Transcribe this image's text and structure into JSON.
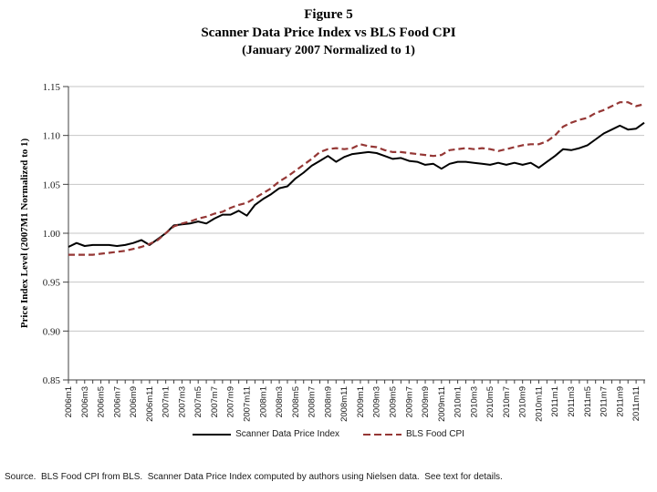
{
  "title": {
    "line1": "Figure 5",
    "line2": "Scanner Data Price Index vs BLS Food CPI",
    "line3": "(January 2007 Normalized to 1)"
  },
  "chart_data": {
    "type": "line",
    "title": "Figure 5 — Scanner Data Price Index vs BLS Food CPI (January 2007 Normalized to 1)",
    "xlabel": "",
    "ylabel": "Price Index Level (2007M1 Normalized to 1)",
    "ylim": [
      0.85,
      1.15
    ],
    "ytick_labels": [
      "1.15",
      "1.10",
      "1.05",
      "1.00",
      "0.95",
      "0.90",
      "0.85"
    ],
    "grid": true,
    "legend_position": "bottom",
    "x_tick_labels": [
      "2006m1",
      "2006m3",
      "2006m5",
      "2006m7",
      "2006m9",
      "2006m11",
      "2007m1",
      "2007m3",
      "2007m5",
      "2007m7",
      "2007m9",
      "2007m11",
      "2008m1",
      "2008m3",
      "2008m5",
      "2008m7",
      "2008m9",
      "2008m11",
      "2009m1",
      "2009m3",
      "2009m5",
      "2009m7",
      "2009m9",
      "2009m11",
      "2010m1",
      "2010m3",
      "2010m5",
      "2010m7",
      "2010m9",
      "2010m11",
      "2011m1",
      "2011m3",
      "2011m5",
      "2011m7",
      "2011m9",
      "2011m11"
    ],
    "x_range": [
      "2006m1",
      "2011m12"
    ],
    "series": [
      {
        "name": "Scanner Data Price Index",
        "color": "#000000",
        "style": "solid",
        "values": [
          0.986,
          0.99,
          0.987,
          0.988,
          0.988,
          0.988,
          0.987,
          0.988,
          0.99,
          0.993,
          0.988,
          0.994,
          1.0,
          1.008,
          1.009,
          1.01,
          1.012,
          1.01,
          1.015,
          1.019,
          1.019,
          1.023,
          1.018,
          1.029,
          1.035,
          1.04,
          1.046,
          1.048,
          1.056,
          1.062,
          1.069,
          1.074,
          1.079,
          1.073,
          1.078,
          1.081,
          1.082,
          1.083,
          1.082,
          1.079,
          1.076,
          1.077,
          1.074,
          1.073,
          1.07,
          1.071,
          1.066,
          1.071,
          1.073,
          1.073,
          1.072,
          1.071,
          1.07,
          1.072,
          1.07,
          1.072,
          1.07,
          1.072,
          1.067,
          1.073,
          1.079,
          1.086,
          1.085,
          1.087,
          1.09,
          1.096,
          1.102,
          1.106,
          1.11,
          1.106,
          1.107,
          1.113
        ]
      },
      {
        "name": "BLS Food CPI",
        "color": "#953735",
        "style": "dashed",
        "values": [
          0.978,
          0.978,
          0.978,
          0.978,
          0.979,
          0.98,
          0.981,
          0.982,
          0.984,
          0.986,
          0.989,
          0.993,
          1.0,
          1.007,
          1.01,
          1.012,
          1.015,
          1.017,
          1.02,
          1.022,
          1.026,
          1.029,
          1.031,
          1.036,
          1.041,
          1.046,
          1.053,
          1.058,
          1.064,
          1.07,
          1.076,
          1.083,
          1.086,
          1.087,
          1.086,
          1.087,
          1.091,
          1.089,
          1.088,
          1.085,
          1.083,
          1.083,
          1.082,
          1.081,
          1.08,
          1.079,
          1.08,
          1.085,
          1.086,
          1.087,
          1.086,
          1.087,
          1.086,
          1.084,
          1.086,
          1.088,
          1.09,
          1.091,
          1.091,
          1.094,
          1.1,
          1.109,
          1.113,
          1.116,
          1.118,
          1.123,
          1.126,
          1.13,
          1.134,
          1.134,
          1.13,
          1.132
        ]
      }
    ],
    "colors": {
      "grid": "#c6c6c6",
      "axis": "#404040",
      "tick_text": "#1a1a1a"
    }
  },
  "source_note": "Source.  BLS Food CPI from BLS.  Scanner Data Price Index computed by authors using Nielsen data.  See text for details."
}
